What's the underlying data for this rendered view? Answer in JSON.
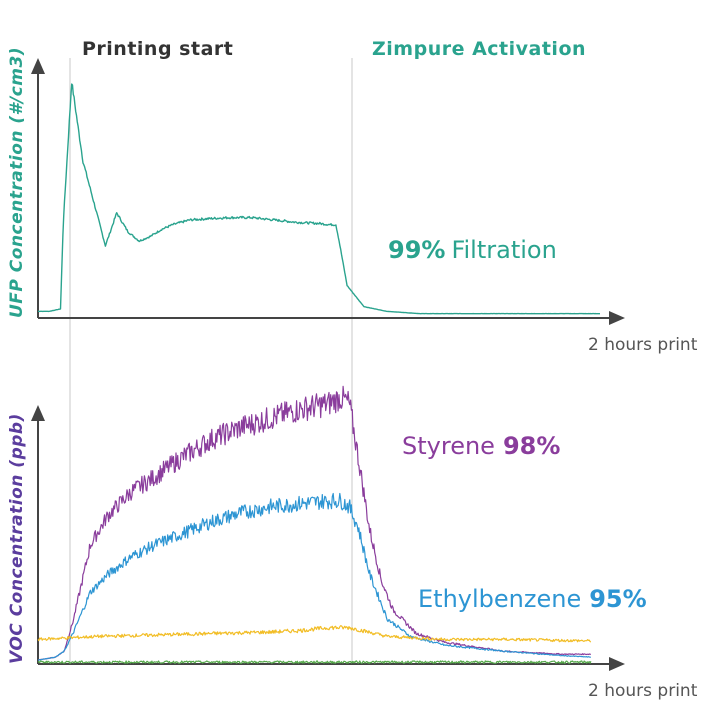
{
  "chart_data": [
    {
      "type": "line",
      "ylabel": "UFP Concentration (#/cm3)",
      "xlabel": "2 hours print",
      "annotations": {
        "printing_start": "Printing start",
        "activation": "Zimpure Activation",
        "callout_pct": "99%",
        "callout_text": "Filtration"
      },
      "series": [
        {
          "color": "#2aa38e",
          "x": [
            0,
            0.02,
            0.04,
            0.045,
            0.06,
            0.08,
            0.1,
            0.12,
            0.14,
            0.16,
            0.18,
            0.2,
            0.22,
            0.24,
            0.27,
            0.3,
            0.34,
            0.38,
            0.42,
            0.46,
            0.5,
            0.52,
            0.53,
            0.535,
            0.55,
            0.58,
            0.62,
            0.68,
            0.75,
            1.0
          ],
          "y": [
            2,
            2,
            3,
            40,
            100,
            66,
            48,
            30,
            44,
            36,
            32,
            34,
            37,
            39,
            41,
            41.5,
            42,
            42,
            41,
            40,
            39.5,
            39,
            39,
            33,
            13,
            4,
            2,
            1,
            1,
            1
          ]
        }
      ],
      "xlim": [
        0,
        1
      ],
      "ylim": [
        0,
        105
      ]
    },
    {
      "type": "line",
      "ylabel": "VOC Concentration (ppb)",
      "xlabel": "2 hours print",
      "annotations": {
        "styrene_name": "Styrene",
        "styrene_pct": "98%",
        "ethyl_name": "Ethylbenzene",
        "ethyl_pct": "95%"
      },
      "series": [
        {
          "name": "Styrene",
          "color": "#8a3d9c",
          "x": [
            0,
            0.03,
            0.045,
            0.06,
            0.09,
            0.12,
            0.16,
            0.2,
            0.25,
            0.3,
            0.35,
            0.4,
            0.45,
            0.5,
            0.52,
            0.535,
            0.55,
            0.57,
            0.59,
            0.61,
            0.65,
            0.7,
            0.8,
            0.9,
            0.95
          ],
          "y": [
            1,
            2,
            4,
            14,
            40,
            50,
            58,
            63,
            70,
            76,
            80,
            83,
            86,
            88,
            90,
            88,
            70,
            45,
            28,
            18,
            10,
            7,
            4,
            3,
            3
          ]
        },
        {
          "name": "Ethylbenzene",
          "color": "#2d95d3",
          "x": [
            0,
            0.03,
            0.045,
            0.06,
            0.09,
            0.12,
            0.16,
            0.2,
            0.25,
            0.3,
            0.35,
            0.4,
            0.45,
            0.5,
            0.52,
            0.535,
            0.55,
            0.57,
            0.6,
            0.64,
            0.7,
            0.8,
            0.9,
            0.95
          ],
          "y": [
            1,
            2,
            4,
            10,
            24,
            30,
            36,
            40,
            44,
            48,
            51,
            53,
            54,
            55,
            55,
            53,
            46,
            30,
            15,
            9,
            6,
            4,
            2.5,
            2
          ],
          "ylim": [
            0,
            100
          ]
        },
        {
          "color": "#f2bd25",
          "x": [
            0,
            0.1,
            0.2,
            0.3,
            0.4,
            0.45,
            0.5,
            0.52,
            0.535,
            0.6,
            0.7,
            0.8,
            0.95
          ],
          "y": [
            8,
            9,
            9.5,
            10,
            10.5,
            11,
            12,
            12,
            12,
            9,
            8,
            8,
            7.5
          ]
        },
        {
          "color": "#55a84a",
          "x": [
            0,
            0.5,
            0.95
          ],
          "y": [
            0.3,
            0.3,
            0.3
          ]
        }
      ],
      "xlim": [
        0,
        1
      ],
      "ylim": [
        0,
        100
      ]
    }
  ]
}
